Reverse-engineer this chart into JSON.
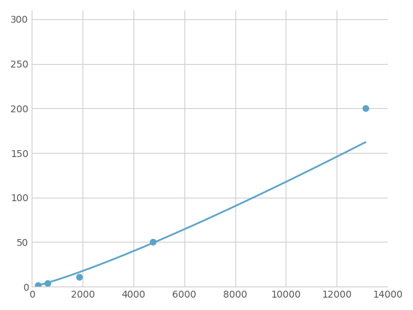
{
  "x_data": [
    250,
    625,
    1875,
    4750,
    13125
  ],
  "y_data": [
    2,
    4,
    11,
    50,
    200
  ],
  "line_color": "#5ba3c9",
  "marker_color": "#5ba3c9",
  "marker_size": 7,
  "line_width": 1.8,
  "xlim": [
    0,
    14000
  ],
  "ylim": [
    0,
    310
  ],
  "xticks": [
    0,
    2000,
    4000,
    6000,
    8000,
    10000,
    12000,
    14000
  ],
  "yticks": [
    0,
    50,
    100,
    150,
    200,
    250,
    300
  ],
  "grid_color": "#cccccc",
  "background_color": "#ffffff",
  "spine_color": "#cccccc"
}
